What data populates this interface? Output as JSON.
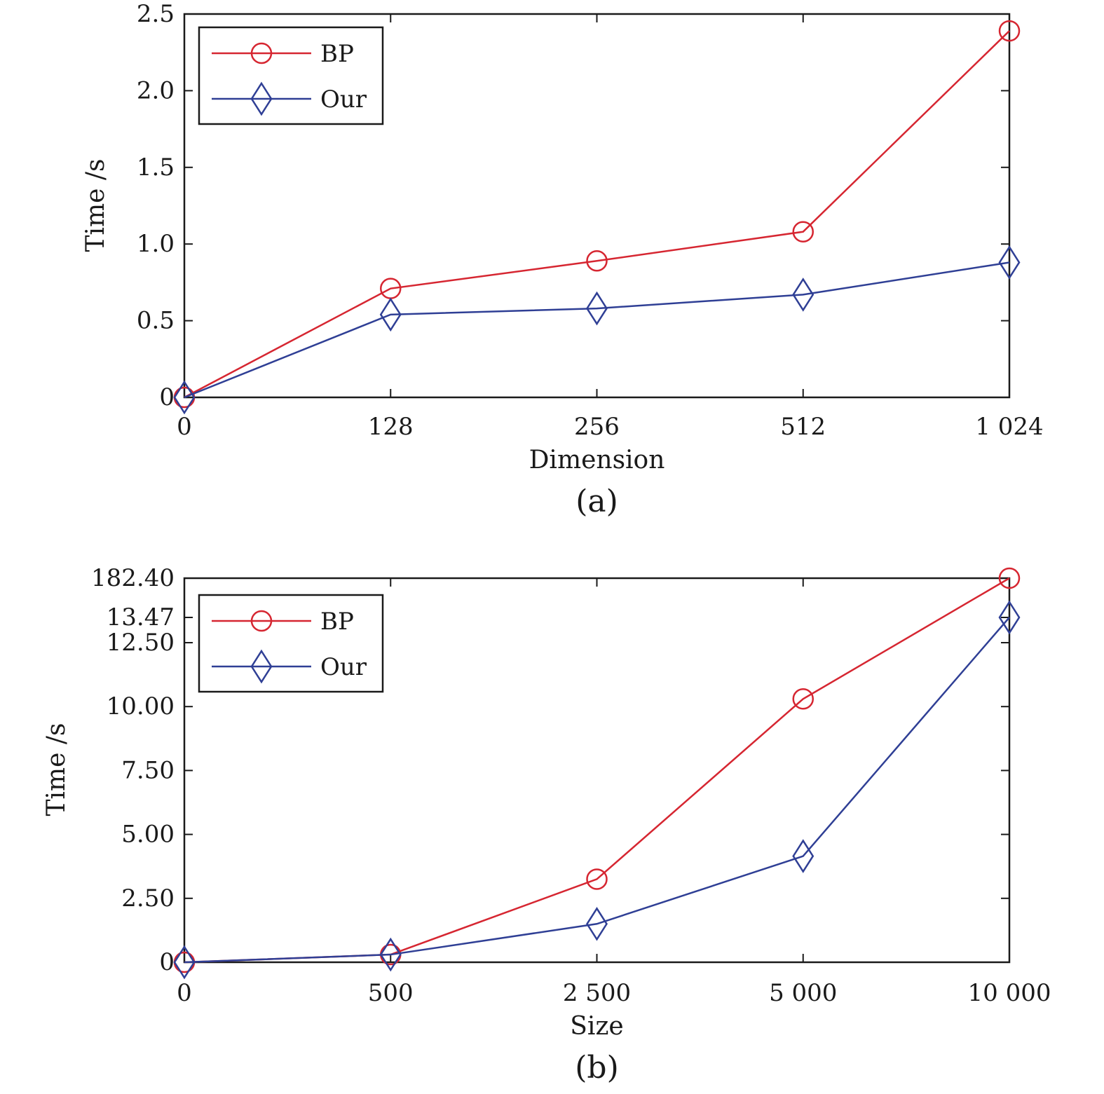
{
  "chart_data": [
    {
      "type": "line",
      "caption": "(a)",
      "xlabel": "Dimension",
      "ylabel": "Time /s",
      "x_tick_labels": [
        "0",
        "128",
        "256",
        "512",
        "1 024"
      ],
      "x_scale": "categorical (equally spaced)",
      "y_ticks": [
        0,
        0.5,
        1.0,
        1.5,
        2.0,
        2.5
      ],
      "y_tick_labels": [
        "0",
        "0.5",
        "1.0",
        "1.5",
        "2.0",
        "2.5"
      ],
      "ylim": [
        0,
        2.5
      ],
      "legend_position": "top-left",
      "series": [
        {
          "name": "BP",
          "marker": "circle",
          "color": "#d62631",
          "values": [
            0,
            0.71,
            0.89,
            1.08,
            2.39
          ]
        },
        {
          "name": "Our",
          "marker": "diamond",
          "color": "#2f3f95",
          "values": [
            0,
            0.54,
            0.58,
            0.67,
            0.88
          ]
        }
      ]
    },
    {
      "type": "line",
      "caption": "(b)",
      "xlabel": "Size",
      "ylabel": "Time /s",
      "x_tick_labels": [
        "0",
        "500",
        "2 500",
        "5 000",
        "10 000"
      ],
      "x_scale": "categorical (equally spaced)",
      "y_ticks": [
        0,
        2.5,
        5.0,
        7.5,
        10.0,
        12.5,
        13.47,
        182.4
      ],
      "y_tick_labels": [
        "0",
        "2.50",
        "5.00",
        "7.50",
        "10.00",
        "12.50",
        "13.47",
        "182.40"
      ],
      "y_scale": "broken axis: linear 0–12.50, compressed segment 12.50–13.47–182.40",
      "legend_position": "top-left",
      "series": [
        {
          "name": "BP",
          "marker": "circle",
          "color": "#d62631",
          "values": [
            0,
            0.3,
            3.25,
            10.3,
            182.4
          ]
        },
        {
          "name": "Our",
          "marker": "diamond",
          "color": "#2f3f95",
          "values": [
            0,
            0.3,
            1.5,
            4.15,
            13.47
          ]
        }
      ]
    }
  ]
}
